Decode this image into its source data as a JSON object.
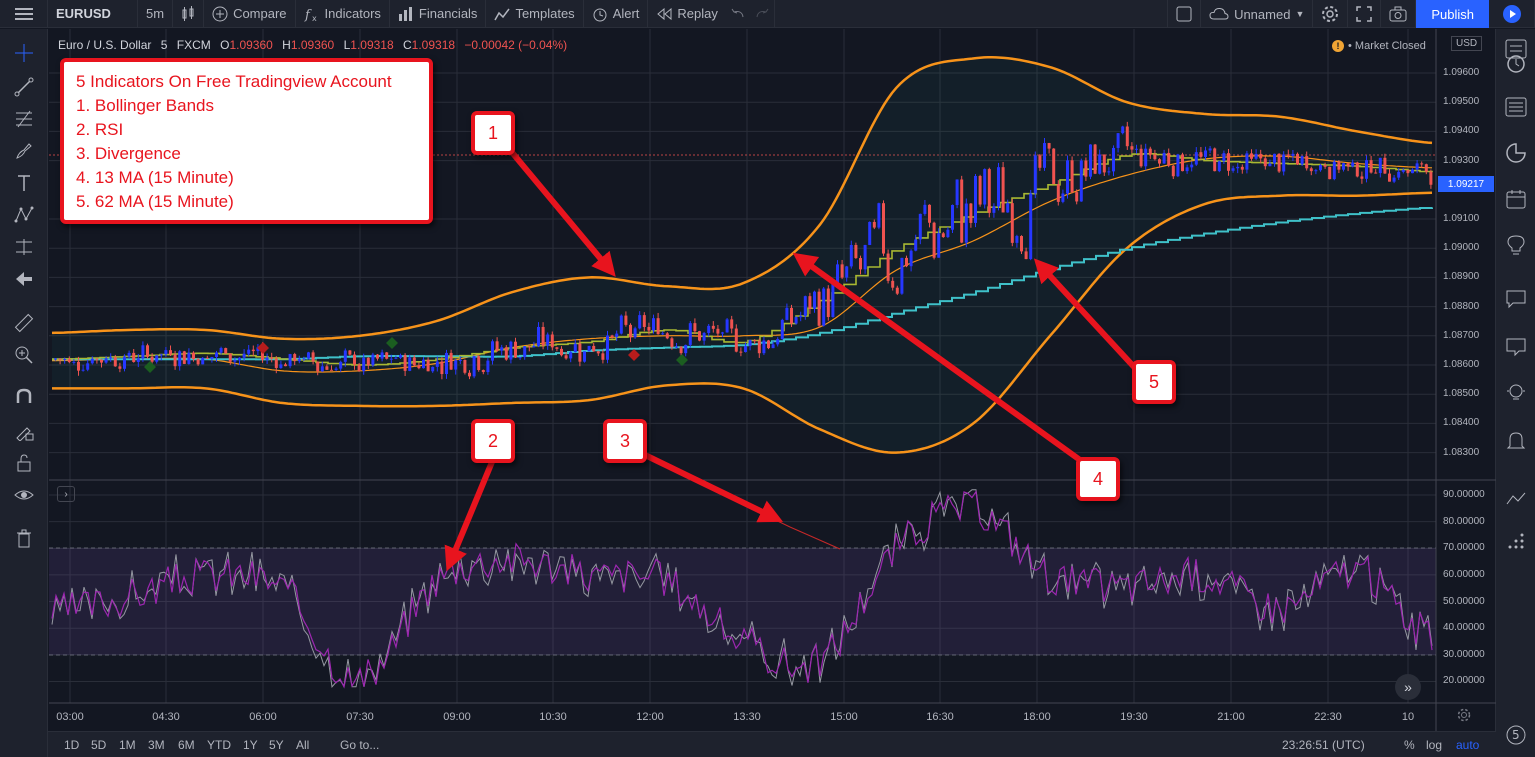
{
  "topbar": {
    "symbol": "EURUSD",
    "interval": "5m",
    "compare": "Compare",
    "indicators": "Indicators",
    "financials": "Financials",
    "templates": "Templates",
    "alert": "Alert",
    "replay": "Replay",
    "layout_name": "Unnamed",
    "publish": "Publish"
  },
  "legend": {
    "name": "Euro / U.S. Dollar",
    "interval": "5",
    "exchange": "FXCM",
    "o_label": "O",
    "o_value": "1.09360",
    "h_label": "H",
    "h_value": "1.09360",
    "l_label": "L",
    "l_value": "1.09318",
    "c_label": "C",
    "c_value": "1.09318",
    "change": "−0.00042 (−0.04%)"
  },
  "market_status": "Market Closed",
  "market_status_icon": "!",
  "currency_badge": "USD",
  "last_price": "1.09217",
  "annotation": {
    "lines": [
      "5 Indicators On Free Tradingview Account",
      "1. Bollinger Bands",
      "2. RSI",
      "3. Divergence",
      "4. 13 MA (15 Minute)",
      "5. 62 MA (15 Minute)"
    ],
    "markers": [
      "1",
      "2",
      "3",
      "4",
      "5"
    ]
  },
  "price_axis": [
    "1.09600",
    "1.09500",
    "1.09400",
    "1.09300",
    "1.09100",
    "1.09000",
    "1.08900",
    "1.08800",
    "1.08700",
    "1.08600",
    "1.08500",
    "1.08400",
    "1.08300"
  ],
  "rsi_axis": [
    "90.00000",
    "80.00000",
    "70.00000",
    "60.00000",
    "50.00000",
    "40.00000",
    "30.00000",
    "20.00000"
  ],
  "time_axis": [
    "03:00",
    "04:30",
    "06:00",
    "07:30",
    "09:00",
    "10:30",
    "12:00",
    "13:30",
    "15:00",
    "16:30",
    "18:00",
    "19:30",
    "21:00",
    "22:30",
    "10"
  ],
  "bottombar": {
    "timeframes": [
      "1D",
      "5D",
      "1M",
      "3M",
      "6M",
      "YTD",
      "1Y",
      "5Y",
      "All"
    ],
    "goto": "Go to...",
    "clock": "23:26:51 (UTC)",
    "percent": "%",
    "log": "log",
    "auto": "auto"
  },
  "colors": {
    "background": "#131722",
    "panel": "#1e222d",
    "bollinger": "#f7931a",
    "ma13": "#a8b832",
    "ma62": "#3fc1c9",
    "bull_candle": "#2637ff",
    "bear_candle": "#ef5350",
    "rsi": "#9c27b0",
    "annotation_red": "#e8141e",
    "accent": "#2962ff"
  },
  "chart_data": {
    "type": "line",
    "title": "",
    "series": [
      {
        "name": "",
        "values": [
          1.0871,
          1.0872,
          1.0872,
          1.0869,
          1.087,
          1.0875,
          1.0885,
          1.089,
          1.0887,
          1.0888,
          1.0908,
          1.0955,
          1.0965,
          1.0962,
          1.095,
          1.0946,
          1.0945,
          1.094,
          1.0936
        ]
      },
      {
        "name": "",
        "values": [
          1.0852,
          1.0852,
          1.0852,
          1.0847,
          1.0846,
          1.0846,
          1.0847,
          1.0848,
          1.0853,
          1.0852,
          1.0838,
          1.083,
          1.084,
          1.087,
          1.09,
          1.0915,
          1.0918,
          1.0918,
          1.0919
        ]
      },
      {
        "name": "",
        "values": [
          1.0862,
          1.0863,
          1.0864,
          1.0862,
          1.086,
          1.0862,
          1.0866,
          1.0868,
          1.0872,
          1.0868,
          1.0882,
          1.09,
          1.0912,
          1.0922,
          1.0932,
          1.093,
          1.0929,
          1.0928,
          1.0926
        ]
      },
      {
        "name": "",
        "values": [
          1.0862,
          1.0862,
          1.0862,
          1.0862,
          1.0863,
          1.0863,
          1.0863,
          1.0865,
          1.0866,
          1.0867,
          1.0871,
          1.0878,
          1.0885,
          1.0893,
          1.09,
          1.0905,
          1.0909,
          1.0912,
          1.0914
        ]
      },
      {
        "name": "",
        "values": [
          46,
          52,
          60,
          55,
          20,
          58,
          66,
          60,
          58,
          35,
          28,
          70,
          85,
          60,
          56,
          60,
          48,
          62,
          35
        ]
      }
    ],
    "ylim": [
      1.0825,
      1.0975
    ]
  }
}
